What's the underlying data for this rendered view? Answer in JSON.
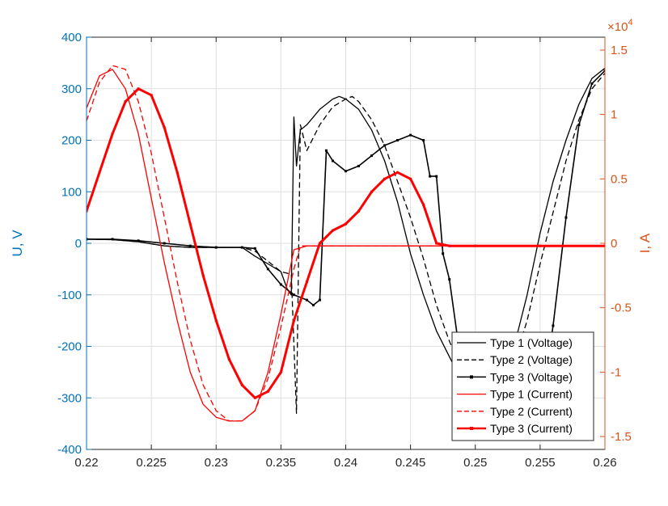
{
  "chart_data": {
    "type": "line",
    "x_ticks": [
      "0.22",
      "0.225",
      "0.23",
      "0.235",
      "0.24",
      "0.245",
      "0.25",
      "0.255",
      "0.26"
    ],
    "x_range": [
      0.22,
      0.26
    ],
    "y_left": {
      "label": "U, V",
      "range": [
        -400,
        400
      ],
      "ticks": [
        "400",
        "300",
        "200",
        "100",
        "0",
        "-100",
        "-200",
        "-300",
        "-400"
      ],
      "color": "#0072BD"
    },
    "y_right": {
      "label": "I, A",
      "range": [
        -1.6,
        1.6
      ],
      "exponent": "×10",
      "exponent_power": "4",
      "ticks": [
        "1.5",
        "1",
        "0.5",
        "0",
        "-0.5",
        "-1",
        "-1.5"
      ],
      "color": "#D95319"
    },
    "grid": true,
    "legend_position": "bottom-right",
    "series": [
      {
        "name": "Type 1 (Voltage)",
        "axis": "left",
        "color": "#000000",
        "style": "solid",
        "x": [
          0.22,
          0.222,
          0.224,
          0.226,
          0.228,
          0.23,
          0.232,
          0.233,
          0.234,
          0.235,
          0.2355,
          0.2358,
          0.236,
          0.2362,
          0.2365,
          0.237,
          0.238,
          0.239,
          0.2395,
          0.24,
          0.241,
          0.242,
          0.243,
          0.244,
          0.245,
          0.246,
          0.247,
          0.248,
          0.249,
          0.25,
          0.251,
          0.252,
          0.253,
          0.254,
          0.255,
          0.256,
          0.257,
          0.258,
          0.259,
          0.26
        ],
        "y": [
          8,
          7,
          3,
          -5,
          -8,
          -8,
          -8,
          -25,
          -40,
          -55,
          -90,
          -100,
          245,
          150,
          220,
          230,
          260,
          280,
          285,
          280,
          260,
          220,
          160,
          80,
          -20,
          -100,
          -170,
          -220,
          -270,
          -300,
          -320,
          -280,
          -200,
          -100,
          20,
          120,
          200,
          270,
          320,
          340
        ]
      },
      {
        "name": "Type 2 (Voltage)",
        "axis": "left",
        "color": "#000000",
        "style": "dashed",
        "x": [
          0.22,
          0.222,
          0.224,
          0.226,
          0.228,
          0.23,
          0.232,
          0.233,
          0.234,
          0.235,
          0.2358,
          0.2362,
          0.2365,
          0.237,
          0.238,
          0.239,
          0.24,
          0.2405,
          0.241,
          0.242,
          0.243,
          0.244,
          0.245,
          0.246,
          0.247,
          0.248,
          0.249,
          0.25,
          0.251,
          0.252,
          0.253,
          0.254,
          0.255,
          0.256,
          0.257,
          0.258,
          0.259,
          0.26
        ],
        "y": [
          8,
          7,
          3,
          -5,
          -8,
          -8,
          -8,
          -15,
          -35,
          -55,
          -60,
          -330,
          230,
          180,
          230,
          265,
          280,
          285,
          275,
          240,
          190,
          120,
          50,
          -30,
          -120,
          -190,
          -250,
          -300,
          -320,
          -280,
          -230,
          -150,
          -40,
          60,
          160,
          240,
          300,
          330
        ]
      },
      {
        "name": "Type 3 (Voltage)",
        "axis": "left",
        "color": "#000000",
        "style": "marker",
        "x": [
          0.22,
          0.222,
          0.224,
          0.226,
          0.228,
          0.23,
          0.232,
          0.233,
          0.234,
          0.235,
          0.236,
          0.237,
          0.2375,
          0.238,
          0.2385,
          0.239,
          0.24,
          0.241,
          0.242,
          0.243,
          0.244,
          0.245,
          0.246,
          0.2465,
          0.247,
          0.2475,
          0.248,
          0.249,
          0.25,
          0.251,
          0.252,
          0.253,
          0.254,
          0.255,
          0.256,
          0.257,
          0.258,
          0.259,
          0.26
        ],
        "y": [
          8,
          8,
          5,
          0,
          -5,
          -8,
          -8,
          -10,
          -50,
          -80,
          -100,
          -110,
          -120,
          -110,
          180,
          160,
          140,
          150,
          170,
          190,
          200,
          210,
          200,
          130,
          130,
          -20,
          -70,
          -250,
          -350,
          -380,
          -380,
          -380,
          -370,
          -330,
          -160,
          50,
          230,
          310,
          335
        ]
      },
      {
        "name": "Type 1 (Current)",
        "axis": "right",
        "color": "#FF0000",
        "style": "solid",
        "x": [
          0.22,
          0.221,
          0.222,
          0.223,
          0.224,
          0.225,
          0.226,
          0.227,
          0.228,
          0.229,
          0.23,
          0.231,
          0.232,
          0.233,
          0.234,
          0.235,
          0.236,
          0.237,
          0.238,
          0.24,
          0.245,
          0.25,
          0.255,
          0.26
        ],
        "y": [
          1.05,
          1.3,
          1.35,
          1.2,
          0.85,
          0.35,
          -0.15,
          -0.6,
          -1.0,
          -1.25,
          -1.35,
          -1.38,
          -1.38,
          -1.3,
          -1.0,
          -0.55,
          -0.05,
          -0.02,
          -0.02,
          -0.02,
          -0.02,
          -0.02,
          -0.02,
          -0.02
        ]
      },
      {
        "name": "Type 2 (Current)",
        "axis": "right",
        "color": "#FF0000",
        "style": "dashed",
        "x": [
          0.22,
          0.221,
          0.222,
          0.223,
          0.224,
          0.225,
          0.226,
          0.227,
          0.228,
          0.229,
          0.23,
          0.231,
          0.232,
          0.233,
          0.234,
          0.235,
          0.236,
          0.2365,
          0.237,
          0.238,
          0.24,
          0.245,
          0.25,
          0.255,
          0.26
        ],
        "y": [
          0.95,
          1.25,
          1.38,
          1.35,
          1.1,
          0.7,
          0.2,
          -0.3,
          -0.75,
          -1.1,
          -1.3,
          -1.38,
          -1.38,
          -1.3,
          -1.05,
          -0.65,
          -0.2,
          -0.02,
          -0.02,
          -0.02,
          -0.02,
          -0.02,
          -0.02,
          -0.02,
          -0.02
        ]
      },
      {
        "name": "Type 3 (Current)",
        "axis": "right",
        "color": "#FF0000",
        "style": "marker",
        "x": [
          0.22,
          0.221,
          0.222,
          0.223,
          0.224,
          0.225,
          0.226,
          0.227,
          0.228,
          0.229,
          0.23,
          0.231,
          0.232,
          0.233,
          0.234,
          0.235,
          0.236,
          0.237,
          0.238,
          0.239,
          0.24,
          0.241,
          0.242,
          0.243,
          0.244,
          0.245,
          0.246,
          0.247,
          0.248,
          0.25,
          0.255,
          0.26
        ],
        "y": [
          0.25,
          0.55,
          0.85,
          1.1,
          1.2,
          1.15,
          0.9,
          0.55,
          0.15,
          -0.25,
          -0.6,
          -0.9,
          -1.1,
          -1.2,
          -1.15,
          -1.0,
          -0.6,
          -0.3,
          0.0,
          0.1,
          0.15,
          0.25,
          0.4,
          0.5,
          0.55,
          0.5,
          0.3,
          0.0,
          -0.02,
          -0.02,
          -0.02,
          -0.02
        ]
      }
    ]
  }
}
